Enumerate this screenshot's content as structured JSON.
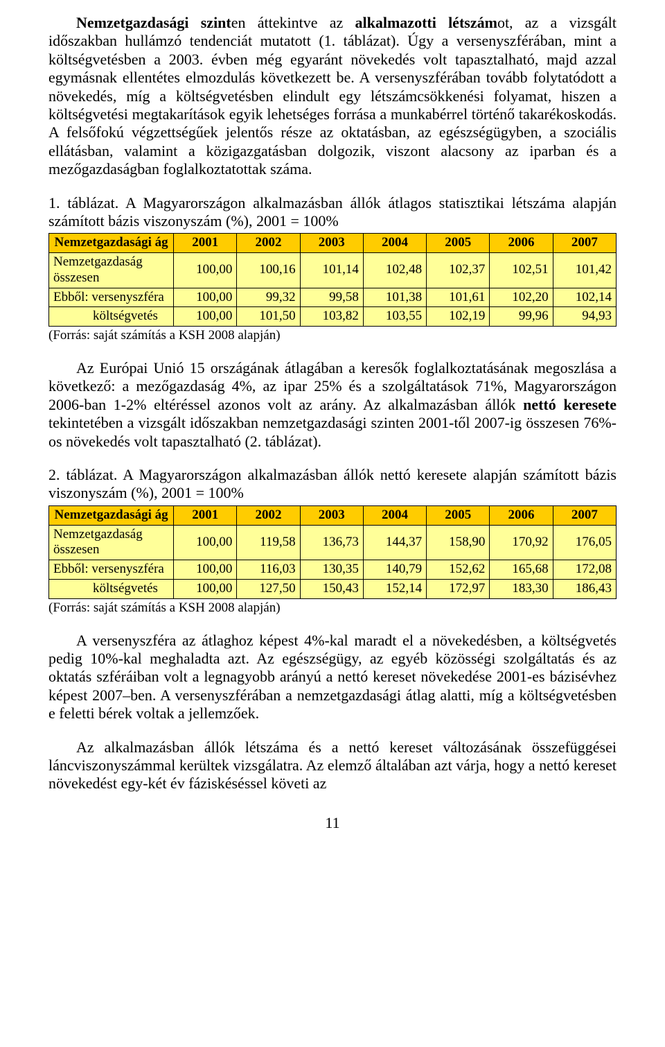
{
  "para1_parts": [
    {
      "text": "Nemzetgazdasági szint",
      "bold": true
    },
    {
      "text": "en áttekintve az ",
      "bold": false
    },
    {
      "text": "alkalmazotti létszám",
      "bold": true
    },
    {
      "text": "ot, az a vizsgált időszakban hullámzó tendenciát mutatott (1. táblázat). Úgy a versenyszférában, mint a költségvetésben a 2003. évben még egyaránt növekedés volt tapasztalható, majd azzal egymásnak ellentétes elmozdulás következett be. A versenyszférában tovább folytatódott a növekedés, míg a költségvetésben elindult egy létszámcsökkenési folyamat, hiszen a költségvetési megtakarítások egyik lehetséges forrása a munkabérrel történő takarékoskodás. A felsőfokú végzettségűek jelentős része az oktatásban, az egészségügyben, a szociális ellátásban, valamint a közigazgatásban dolgozik, viszont alacsony az iparban és a mezőgazdaságban foglalkoztatottak száma.",
      "bold": false
    }
  ],
  "table1_caption": "1. táblázat. A Magyarországon alkalmazásban állók átlagos statisztikai létszáma alapján számított bázis viszonyszám (%), 2001 = 100%",
  "table1": {
    "header": [
      "Nemzetgazdasági ág",
      "2001",
      "2002",
      "2003",
      "2004",
      "2005",
      "2006",
      "2007"
    ],
    "rows": [
      [
        "Nemzetgazdaság összesen",
        "100,00",
        "100,16",
        "101,14",
        "102,48",
        "102,37",
        "102,51",
        "101,42"
      ],
      [
        "Ebből: versenyszféra",
        "100,00",
        "99,32",
        "99,58",
        "101,38",
        "101,61",
        "102,20",
        "102,14"
      ],
      [
        "költségvetés",
        "100,00",
        "101,50",
        "103,82",
        "103,55",
        "102,19",
        "99,96",
        "94,93"
      ]
    ]
  },
  "source1": "(Forrás: saját számítás a KSH 2008 alapján)",
  "para2_parts": [
    {
      "text": "Az Európai Unió 15 országának átlagában a keresők foglalkoztatásának megoszlása a következő: a mezőgazdaság 4%, az ipar 25% és a szolgáltatások 71%, Magyarországon 2006-ban 1-2% eltéréssel azonos volt az arány. Az alkalmazásban állók ",
      "bold": false
    },
    {
      "text": "nettó keresete",
      "bold": true
    },
    {
      "text": " tekintetében a vizsgált időszakban nemzetgazdasági szinten 2001-től 2007-ig összesen 76%-os növekedés volt tapasztalható (2. táblázat).",
      "bold": false
    }
  ],
  "table2_caption": "2. táblázat. A Magyarországon alkalmazásban állók nettó keresete alapján számított bázis viszonyszám (%), 2001 = 100%",
  "table2": {
    "header": [
      "Nemzetgazdasági ág",
      "2001",
      "2002",
      "2003",
      "2004",
      "2005",
      "2006",
      "2007"
    ],
    "rows": [
      [
        "Nemzetgazdaság összesen",
        "100,00",
        "119,58",
        "136,73",
        "144,37",
        "158,90",
        "170,92",
        "176,05"
      ],
      [
        "Ebből: versenyszféra",
        "100,00",
        "116,03",
        "130,35",
        "140,79",
        "152,62",
        "165,68",
        "172,08"
      ],
      [
        "költségvetés",
        "100,00",
        "127,50",
        "150,43",
        "152,14",
        "172,97",
        "183,30",
        "186,43"
      ]
    ]
  },
  "source2": "(Forrás: saját számítás a KSH 2008 alapján)",
  "para3": "A versenyszféra az átlaghoz képest 4%-kal maradt el a növekedésben, a költségvetés pedig 10%-kal meghaladta azt. Az egészségügy, az egyéb közösségi szolgáltatás és az oktatás szféráiban volt a legnagyobb arányú a nettó kereset növekedése 2001-es bázisévhez képest 2007–ben. A versenyszférában a nemzetgazdasági átlag alatti, míg a költségvetésben e feletti bérek voltak a jellemzőek.",
  "para4": "Az alkalmazásban állók létszáma és a nettó kereset változásának összefüggései láncviszonyszámmal kerültek vizsgálatra. Az elemző általában azt várja, hogy a nettó kereset növekedést egy-két év fáziskéséssel követi az",
  "pagenum": "11",
  "row3_indent": "            "
}
